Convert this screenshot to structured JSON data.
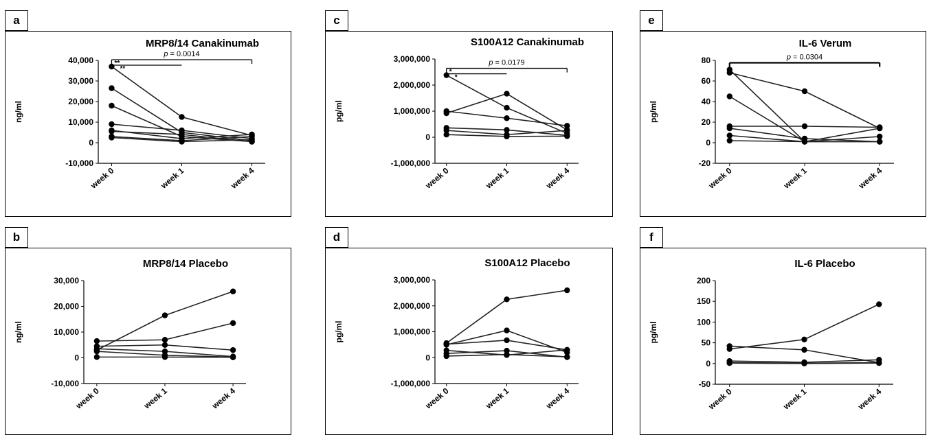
{
  "chart_data": [
    {
      "panel": "a",
      "type": "line",
      "title": "MRP8/14 Canakinumab",
      "ylabel": "ng/ml",
      "categories": [
        "week 0",
        "week 1",
        "week 4"
      ],
      "ylim": [
        -10000,
        40000
      ],
      "yticks": [
        -10000,
        0,
        10000,
        20000,
        30000,
        40000
      ],
      "ytick_labels": [
        "-10,000",
        "0",
        "10,000",
        "20,000",
        "30,000",
        "40,000"
      ],
      "series": [
        {
          "values": [
            37000,
            12500,
            3500
          ]
        },
        {
          "values": [
            26500,
            5000,
            1000
          ]
        },
        {
          "values": [
            18000,
            3000,
            500
          ]
        },
        {
          "values": [
            9000,
            6000,
            2000
          ]
        },
        {
          "values": [
            6000,
            2000,
            4000
          ]
        },
        {
          "values": [
            5500,
            4000,
            500
          ]
        },
        {
          "values": [
            3000,
            1000,
            3000
          ]
        },
        {
          "values": [
            2500,
            500,
            1500
          ]
        }
      ],
      "annotations": {
        "p_prefix": "p",
        "p_value": " = 0.0014",
        "brackets": [
          {
            "from": 0,
            "to": 2,
            "label": "**"
          },
          {
            "from": 0,
            "to": 1,
            "label": "**"
          }
        ]
      }
    },
    {
      "panel": "b",
      "type": "line",
      "title": "MRP8/14 Placebo",
      "ylabel": "ng/ml",
      "categories": [
        "week 0",
        "week 1",
        "week 4"
      ],
      "ylim": [
        -10000,
        30000
      ],
      "yticks": [
        -10000,
        0,
        10000,
        20000,
        30000
      ],
      "ytick_labels": [
        "-10,000",
        "0",
        "10,000",
        "20,000",
        "30,000"
      ],
      "series": [
        {
          "values": [
            6500,
            7000,
            13500
          ]
        },
        {
          "values": [
            3000,
            16500,
            25800
          ]
        },
        {
          "values": [
            4500,
            5000,
            3000
          ]
        },
        {
          "values": [
            3500,
            2500,
            500
          ]
        },
        {
          "values": [
            2500,
            1000,
            300
          ]
        },
        {
          "values": [
            300,
            300,
            200
          ]
        }
      ]
    },
    {
      "panel": "c",
      "type": "line",
      "title": "S100A12 Canakinumab",
      "ylabel": "pg/ml",
      "categories": [
        "week 0",
        "week 1",
        "week 4"
      ],
      "ylim": [
        -1000000,
        3000000
      ],
      "yticks": [
        -1000000,
        0,
        1000000,
        2000000,
        3000000
      ],
      "ytick_labels": [
        "-1,000,000",
        "0",
        "1,000,000",
        "2,000,000",
        "3,000,000"
      ],
      "series": [
        {
          "values": [
            2380000,
            1130000,
            150000
          ]
        },
        {
          "values": [
            1000000,
            730000,
            440000
          ]
        },
        {
          "values": [
            920000,
            1670000,
            280000
          ]
        },
        {
          "values": [
            360000,
            280000,
            70000
          ]
        },
        {
          "values": [
            260000,
            100000,
            260000
          ]
        },
        {
          "values": [
            100000,
            30000,
            40000
          ]
        }
      ],
      "annotations": {
        "p_prefix": "p",
        "p_value": " = 0.0179",
        "brackets": [
          {
            "from": 0,
            "to": 2,
            "label": "*"
          },
          {
            "from": 0,
            "to": 1,
            "label": "*"
          }
        ]
      }
    },
    {
      "panel": "d",
      "type": "line",
      "title": "S100A12 Placebo",
      "ylabel": "pg/ml",
      "categories": [
        "week 0",
        "week 1",
        "week 4"
      ],
      "ylim": [
        -1000000,
        3000000
      ],
      "yticks": [
        -1000000,
        0,
        1000000,
        2000000,
        3000000
      ],
      "ytick_labels": [
        "-1,000,000",
        "0",
        "1,000,000",
        "2,000,000",
        "3,000,000"
      ],
      "series": [
        {
          "values": [
            560000,
            2250000,
            2600000
          ]
        },
        {
          "values": [
            500000,
            1050000,
            200000
          ]
        },
        {
          "values": [
            520000,
            670000,
            300000
          ]
        },
        {
          "values": [
            280000,
            100000,
            300000
          ]
        },
        {
          "values": [
            160000,
            270000,
            20000
          ]
        },
        {
          "values": [
            60000,
            120000,
            30000
          ]
        }
      ]
    },
    {
      "panel": "e",
      "type": "line",
      "title": "IL-6 Verum",
      "ylabel": "pg/ml",
      "categories": [
        "week 0",
        "week 1",
        "week 4"
      ],
      "ylim": [
        -20,
        80
      ],
      "yticks": [
        -20,
        0,
        20,
        40,
        60,
        80
      ],
      "ytick_labels": [
        "-20",
        "0",
        "20",
        "40",
        "60",
        "80"
      ],
      "series": [
        {
          "values": [
            71,
            1,
            14
          ]
        },
        {
          "values": [
            68,
            50,
            14
          ]
        },
        {
          "values": [
            45,
            1,
            1
          ]
        },
        {
          "values": [
            16,
            16,
            15
          ]
        },
        {
          "values": [
            14,
            4,
            1
          ]
        },
        {
          "values": [
            7,
            1,
            6
          ]
        },
        {
          "values": [
            2,
            1,
            1
          ]
        }
      ],
      "annotations": {
        "p_prefix": "p",
        "p_value": " = 0.0304",
        "brackets": [
          {
            "from": 0,
            "to": 2,
            "label": ""
          }
        ]
      }
    },
    {
      "panel": "f",
      "type": "line",
      "title": "IL-6 Placebo",
      "ylabel": "pg/ml",
      "categories": [
        "week 0",
        "week 1",
        "week 4"
      ],
      "ylim": [
        -50,
        200
      ],
      "yticks": [
        -50,
        0,
        50,
        100,
        150,
        200
      ],
      "ytick_labels": [
        "-50",
        "0",
        "50",
        "100",
        "150",
        "200"
      ],
      "series": [
        {
          "values": [
            35,
            58,
            143
          ]
        },
        {
          "values": [
            42,
            33,
            2
          ]
        },
        {
          "values": [
            6,
            3,
            9
          ]
        },
        {
          "values": [
            2,
            1,
            2
          ]
        },
        {
          "values": [
            1,
            0,
            1
          ]
        }
      ]
    }
  ]
}
